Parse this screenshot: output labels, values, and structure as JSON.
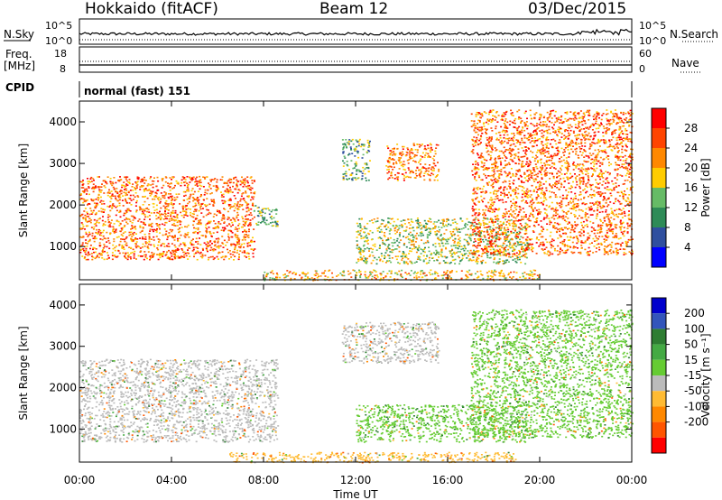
{
  "header": {
    "station": "Hokkaido (fitACF)",
    "beam": "Beam 12",
    "date": "03/Dec/2015"
  },
  "strips": {
    "nsky": {
      "left_label": "N.Sky",
      "left_ticks": [
        "10^5",
        "10^0"
      ],
      "right_ticks": [
        "10^5",
        "10^0"
      ],
      "right_label": "N.Search"
    },
    "freq": {
      "left_label_1": "Freq.",
      "left_label_2": "[MHz]",
      "left_ticks": [
        "18",
        "8"
      ],
      "right_ticks": [
        "60",
        "0"
      ],
      "right_label": "Nave"
    },
    "cpid": {
      "label": "CPID",
      "value": "normal (fast) 151"
    }
  },
  "colors": {
    "power_scale": [
      "#0000ff",
      "#2f4f9f",
      "#2e8b57",
      "#66bb66",
      "#ffcc00",
      "#ff8800",
      "#ff4400",
      "#ff0000"
    ],
    "velocity_scale": [
      "#ff0000",
      "#ff5500",
      "#ff8800",
      "#ffbb33",
      "#bbbbbb",
      "#66cc33",
      "#44aa44",
      "#2e7d32",
      "#3355bb",
      "#0000cc"
    ]
  },
  "chart_data": [
    {
      "type": "heatmap",
      "panel": "power",
      "ylabel": "Slant Range [km]",
      "yticks": [
        "4000",
        "3000",
        "2000",
        "1000"
      ],
      "ylim": [
        200,
        4500
      ],
      "xlim": [
        "00:00",
        "24:00"
      ],
      "colorbar_label": "Power [dB]",
      "colorbar_ticks": [
        "28",
        "24",
        "20",
        "16",
        "12",
        "8",
        "4"
      ],
      "colorbar_range": [
        0,
        32
      ],
      "regions": [
        {
          "t_start": 0.0,
          "t_end": 7.6,
          "range_low": 700,
          "range_high": 2700,
          "power_db": 24
        },
        {
          "t_start": 7.5,
          "t_end": 8.6,
          "range_low": 1500,
          "range_high": 2000,
          "power_db": 12
        },
        {
          "t_start": 11.4,
          "t_end": 12.6,
          "range_low": 2600,
          "range_high": 3600,
          "power_db": 12
        },
        {
          "t_start": 13.3,
          "t_end": 15.6,
          "range_low": 2600,
          "range_high": 3500,
          "power_db": 24
        },
        {
          "t_start": 12.0,
          "t_end": 19.5,
          "range_low": 600,
          "range_high": 1700,
          "power_db": 16
        },
        {
          "t_start": 8.0,
          "t_end": 20.0,
          "range_low": 200,
          "range_high": 450,
          "power_db": 20
        },
        {
          "t_start": 17.0,
          "t_end": 24.0,
          "range_low": 800,
          "range_high": 4300,
          "power_db": 24
        }
      ]
    },
    {
      "type": "heatmap",
      "panel": "velocity",
      "ylabel": "Slant Range [km]",
      "yticks": [
        "4000",
        "3000",
        "2000",
        "1000"
      ],
      "ylim": [
        200,
        4500
      ],
      "xlim": [
        "00:00",
        "24:00"
      ],
      "xlabel": "Time UT",
      "xticks": [
        "00:00",
        "04:00",
        "08:00",
        "12:00",
        "16:00",
        "20:00",
        "00:00"
      ],
      "colorbar_label": "Velocity [m s⁻¹]",
      "colorbar_ticks": [
        "200",
        "100",
        "50",
        "15",
        "-15",
        "-50",
        "-100",
        "-200"
      ],
      "colorbar_range": [
        -250,
        250
      ],
      "regions": [
        {
          "t_start": 0.0,
          "t_end": 8.6,
          "range_low": 700,
          "range_high": 2700,
          "velocity": 0
        },
        {
          "t_start": 11.4,
          "t_end": 15.6,
          "range_low": 2600,
          "range_high": 3600,
          "velocity": 0
        },
        {
          "t_start": 12.0,
          "t_end": 19.5,
          "range_low": 700,
          "range_high": 1600,
          "velocity": 40
        },
        {
          "t_start": 6.5,
          "t_end": 19.0,
          "range_low": 200,
          "range_high": 450,
          "velocity": -30
        },
        {
          "t_start": 17.0,
          "t_end": 24.0,
          "range_low": 800,
          "range_high": 3900,
          "velocity": 20
        }
      ]
    }
  ]
}
